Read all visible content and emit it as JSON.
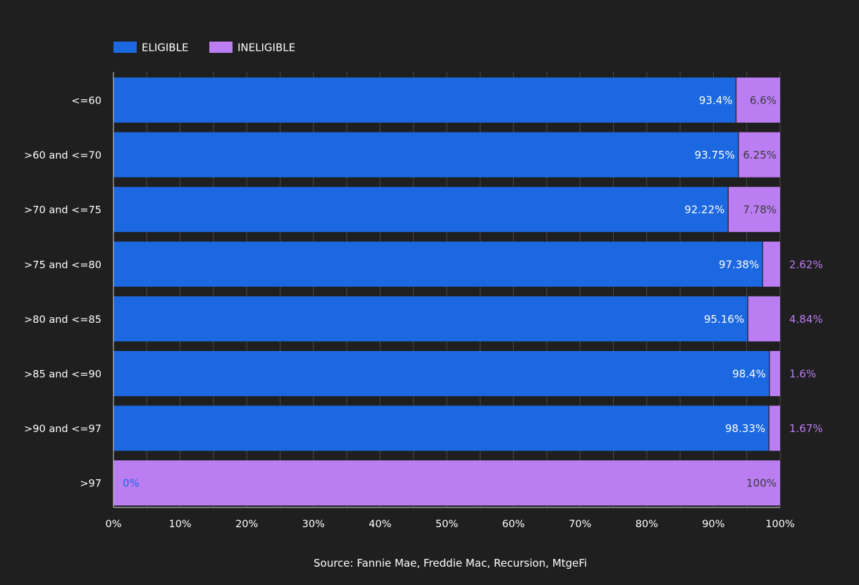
{
  "colors": {
    "background": "#1f1f1f",
    "eligible": "#1c68e1",
    "ineligible": "#bb7ef2",
    "grid": "#4a4a4a",
    "text": "#ffffff",
    "inside_label_dark": "#3a3a3a"
  },
  "source": "Source: Fannie Mae, Freddie Mac, Recursion, MtgeFi",
  "chart_data": {
    "type": "bar",
    "orientation": "horizontal",
    "stacked": "percent",
    "categories": [
      "<=60",
      ">60 and <=70",
      ">70 and <=75",
      ">75 and <=80",
      ">80 and <=85",
      ">85 and <=90",
      ">90 and <=97",
      ">97"
    ],
    "series": [
      {
        "name": "ELIGIBLE",
        "values": [
          93.4,
          93.75,
          92.22,
          97.38,
          95.16,
          98.4,
          98.33,
          0
        ],
        "labels": [
          "93.4%",
          "93.75%",
          "92.22%",
          "97.38%",
          "95.16%",
          "98.4%",
          "98.33%",
          "0%"
        ]
      },
      {
        "name": "INELIGIBLE",
        "values": [
          6.6,
          6.25,
          7.78,
          2.62,
          4.84,
          1.6,
          1.67,
          100
        ],
        "labels": [
          "6.6%",
          "6.25%",
          "7.78%",
          "2.62%",
          "4.84%",
          "1.6%",
          "1.67%",
          "100%"
        ]
      }
    ],
    "xlim": [
      0,
      100
    ],
    "x_ticks": [
      0,
      10,
      20,
      30,
      40,
      50,
      60,
      70,
      80,
      90,
      100
    ],
    "x_tick_labels": [
      "0%",
      "10%",
      "20%",
      "30%",
      "40%",
      "50%",
      "60%",
      "70%",
      "80%",
      "90%",
      "100%"
    ],
    "grid": true,
    "legend": "top-left",
    "title": "",
    "xlabel": "",
    "ylabel": ""
  }
}
